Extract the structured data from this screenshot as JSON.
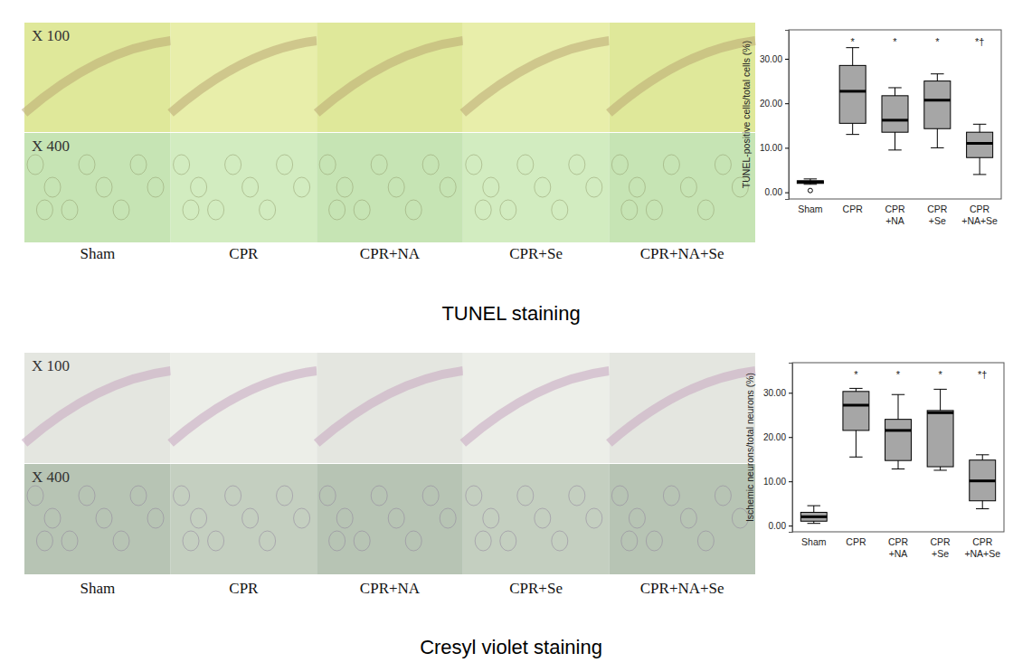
{
  "panels": [
    {
      "caption": "TUNEL staining",
      "magnifications": [
        "X 100",
        "X 400"
      ],
      "groups": [
        "Sham",
        "CPR",
        "CPR+NA",
        "CPR+Se",
        "CPR+NA+Se"
      ]
    },
    {
      "caption": "Cresyl violet staining",
      "magnifications": [
        "X 100",
        "X 400"
      ],
      "groups": [
        "Sham",
        "CPR",
        "CPR+NA",
        "CPR+Se",
        "CPR+NA+Se"
      ]
    }
  ],
  "chart_data": [
    {
      "type": "box",
      "y_label": "TUNEL-positive cells/total cells (%)",
      "categories": [
        "Sham",
        "CPR",
        "CPR\n+NA",
        "CPR\n+Se",
        "CPR\n+NA+Se"
      ],
      "ylim": [
        -1.5,
        36.5
      ],
      "yticks": [
        {
          "value": 0,
          "label": "0.00"
        },
        {
          "value": 10,
          "label": "10.00"
        },
        {
          "value": 20,
          "label": "20.00"
        },
        {
          "value": 30,
          "label": "30.00"
        }
      ],
      "color": "#a6a6a6",
      "boxes": [
        {
          "min": 1.8,
          "q1": 2.0,
          "median": 2.3,
          "q3": 2.6,
          "max": 3.0,
          "outliers": [
            0.4
          ]
        },
        {
          "min": 13,
          "q1": 15.5,
          "median": 22.7,
          "q3": 28.5,
          "max": 32.5,
          "outliers": []
        },
        {
          "min": 9.5,
          "q1": 13.5,
          "median": 16.2,
          "q3": 21.7,
          "max": 23.5,
          "outliers": []
        },
        {
          "min": 10,
          "q1": 14.3,
          "median": 20.7,
          "q3": 25,
          "max": 26.6,
          "outliers": []
        },
        {
          "min": 4,
          "q1": 7.8,
          "median": 11,
          "q3": 13.5,
          "max": 15.3,
          "outliers": []
        }
      ],
      "annotations": [
        null,
        "*",
        "*",
        "*",
        "*†"
      ]
    },
    {
      "type": "box",
      "y_label": "Ischemic neurons/total neurons (%)",
      "categories": [
        "Sham",
        "CPR",
        "CPR\n+NA",
        "CPR\n+Se",
        "CPR\n+NA+Se"
      ],
      "ylim": [
        -1.4,
        36.8
      ],
      "yticks": [
        {
          "value": 0,
          "label": "0.00"
        },
        {
          "value": 10,
          "label": "10.00"
        },
        {
          "value": 20,
          "label": "20.00"
        },
        {
          "value": 30,
          "label": "30.00"
        }
      ],
      "color": "#a6a6a6",
      "boxes": [
        {
          "min": 0.5,
          "q1": 1,
          "median": 2,
          "q3": 3,
          "max": 4.5,
          "outliers": []
        },
        {
          "min": 15.5,
          "q1": 21.5,
          "median": 27.2,
          "q3": 30.3,
          "max": 31,
          "outliers": []
        },
        {
          "min": 12.8,
          "q1": 14.7,
          "median": 21.5,
          "q3": 24,
          "max": 29.6,
          "outliers": []
        },
        {
          "min": 12.5,
          "q1": 13.3,
          "median": 25.5,
          "q3": 26,
          "max": 30.8,
          "outliers": []
        },
        {
          "min": 3.8,
          "q1": 5.6,
          "median": 10.1,
          "q3": 14.8,
          "max": 16,
          "outliers": []
        }
      ],
      "annotations": [
        null,
        "*",
        "*",
        "*",
        "*†"
      ]
    }
  ]
}
